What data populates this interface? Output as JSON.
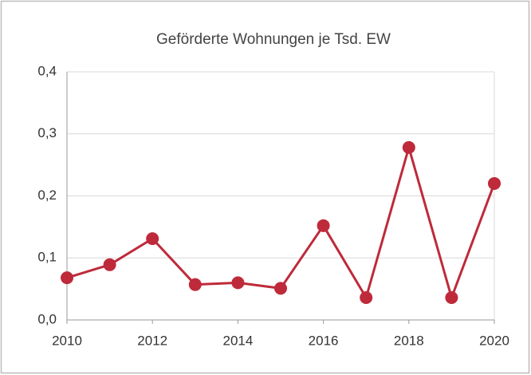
{
  "chart_data": {
    "type": "line",
    "title": "Geförderte Wohnungen je Tsd. EW",
    "x": [
      2010,
      2011,
      2012,
      2013,
      2014,
      2015,
      2016,
      2017,
      2018,
      2019,
      2020
    ],
    "series": [
      {
        "name": "Geförderte Wohnungen je Tsd. EW",
        "color": "#be2a3a",
        "values": [
          0.068,
          0.089,
          0.131,
          0.057,
          0.06,
          0.051,
          0.152,
          0.036,
          0.278,
          0.036,
          0.22
        ]
      }
    ],
    "xlim": [
      2010,
      2020
    ],
    "xticks": [
      2010,
      2012,
      2014,
      2016,
      2018,
      2020
    ],
    "ylim": [
      0,
      0.4
    ],
    "yticks": [
      {
        "value": 0,
        "label": "0,0"
      },
      {
        "value": 0.1,
        "label": "0,1"
      },
      {
        "value": 0.2,
        "label": "0,2"
      },
      {
        "value": 0.3,
        "label": "0,3"
      },
      {
        "value": 0.4,
        "label": "0,4"
      }
    ],
    "grid": true
  }
}
